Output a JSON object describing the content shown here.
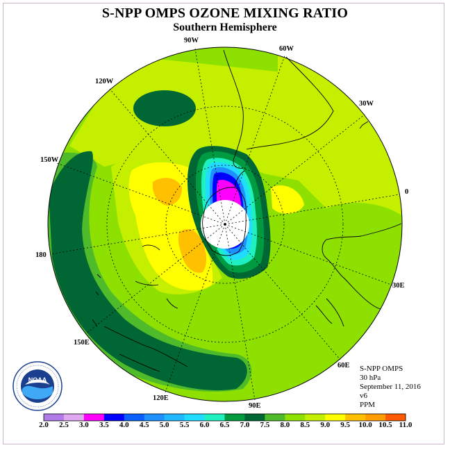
{
  "title": "S-NPP OMPS OZONE MIXING RATIO",
  "subtitle": "Southern Hemisphere",
  "longitude_labels": {
    "lon_90w": "90W",
    "lon_60w": "60W",
    "lon_30w": "30W",
    "lon_0": "0",
    "lon_30e": "30E",
    "lon_60e": "60E",
    "lon_90e": "90E",
    "lon_120e": "120E",
    "lon_150e": "150E",
    "lon_180": "180",
    "lon_150w": "150W",
    "lon_120w": "120W"
  },
  "info": {
    "instrument": "S-NPP OMPS",
    "level": "30 hPa",
    "date": "September 11, 2016",
    "version": "v6",
    "units": "PPM"
  },
  "logo_text": "NOAA",
  "colorbar": {
    "ticks": [
      "2.0",
      "2.5",
      "3.0",
      "3.5",
      "4.0",
      "4.5",
      "5.0",
      "5.5",
      "6.0",
      "6.5",
      "7.0",
      "7.5",
      "8.0",
      "8.5",
      "9.0",
      "9.5",
      "10.0",
      "10.5",
      "11.0"
    ],
    "colors": [
      "#b07ae8",
      "#e0a8f0",
      "#ff00ff",
      "#0000ff",
      "#0a60ff",
      "#1e90ff",
      "#22b8ff",
      "#22dcff",
      "#1ef0c0",
      "#009a40",
      "#006633",
      "#4fbb2b",
      "#8ee000",
      "#c4f000",
      "#ffff00",
      "#ffc000",
      "#ff9c00",
      "#ff5a00",
      "#ff0000",
      "#7a4a2a"
    ]
  },
  "map_colors": {
    "c65": "#009a40",
    "c70": "#006633",
    "c75": "#4fbb2b",
    "c80": "#8ee000",
    "c85": "#c4f000",
    "c90": "#ffff00",
    "c95": "#ffc000",
    "c100": "#ff9c00"
  }
}
